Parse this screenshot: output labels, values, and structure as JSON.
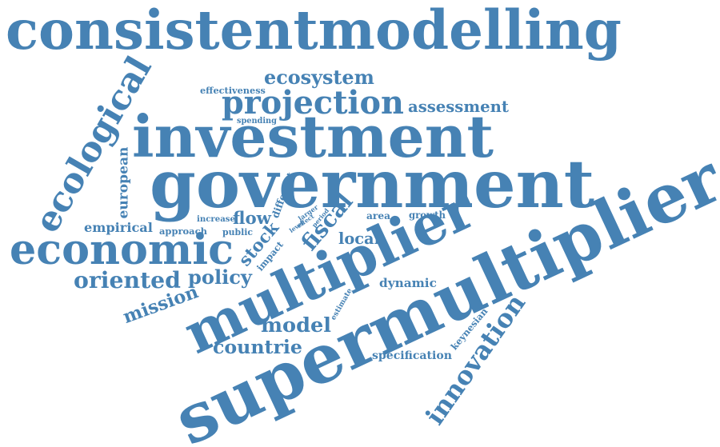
{
  "color": "#4682b4",
  "words": [
    {
      "text": "consistentmodelling"
    },
    {
      "text": "investment"
    },
    {
      "text": "government"
    },
    {
      "text": "supermultiplier"
    },
    {
      "text": "multiplier"
    },
    {
      "text": "economic"
    },
    {
      "text": "ecological"
    },
    {
      "text": "projection"
    },
    {
      "text": "innovation"
    },
    {
      "text": "fiscal"
    },
    {
      "text": "ecosystem"
    },
    {
      "text": "assessment"
    },
    {
      "text": "oriented"
    },
    {
      "text": "policy"
    },
    {
      "text": "mission"
    },
    {
      "text": "stock"
    },
    {
      "text": "model"
    },
    {
      "text": "countrie"
    },
    {
      "text": "flow"
    },
    {
      "text": "local"
    },
    {
      "text": "empirical"
    },
    {
      "text": "effectiveness"
    },
    {
      "text": "public"
    },
    {
      "text": "area"
    },
    {
      "text": "growth"
    },
    {
      "text": "dynamic"
    },
    {
      "text": "specification"
    },
    {
      "text": "european"
    },
    {
      "text": "spending"
    },
    {
      "text": "increase"
    },
    {
      "text": "approach"
    },
    {
      "text": "keynesian"
    },
    {
      "text": "impact"
    },
    {
      "text": "different"
    },
    {
      "text": "estimate"
    },
    {
      "text": "larger"
    },
    {
      "text": "effect"
    },
    {
      "text": "period"
    },
    {
      "text": "level"
    }
  ]
}
